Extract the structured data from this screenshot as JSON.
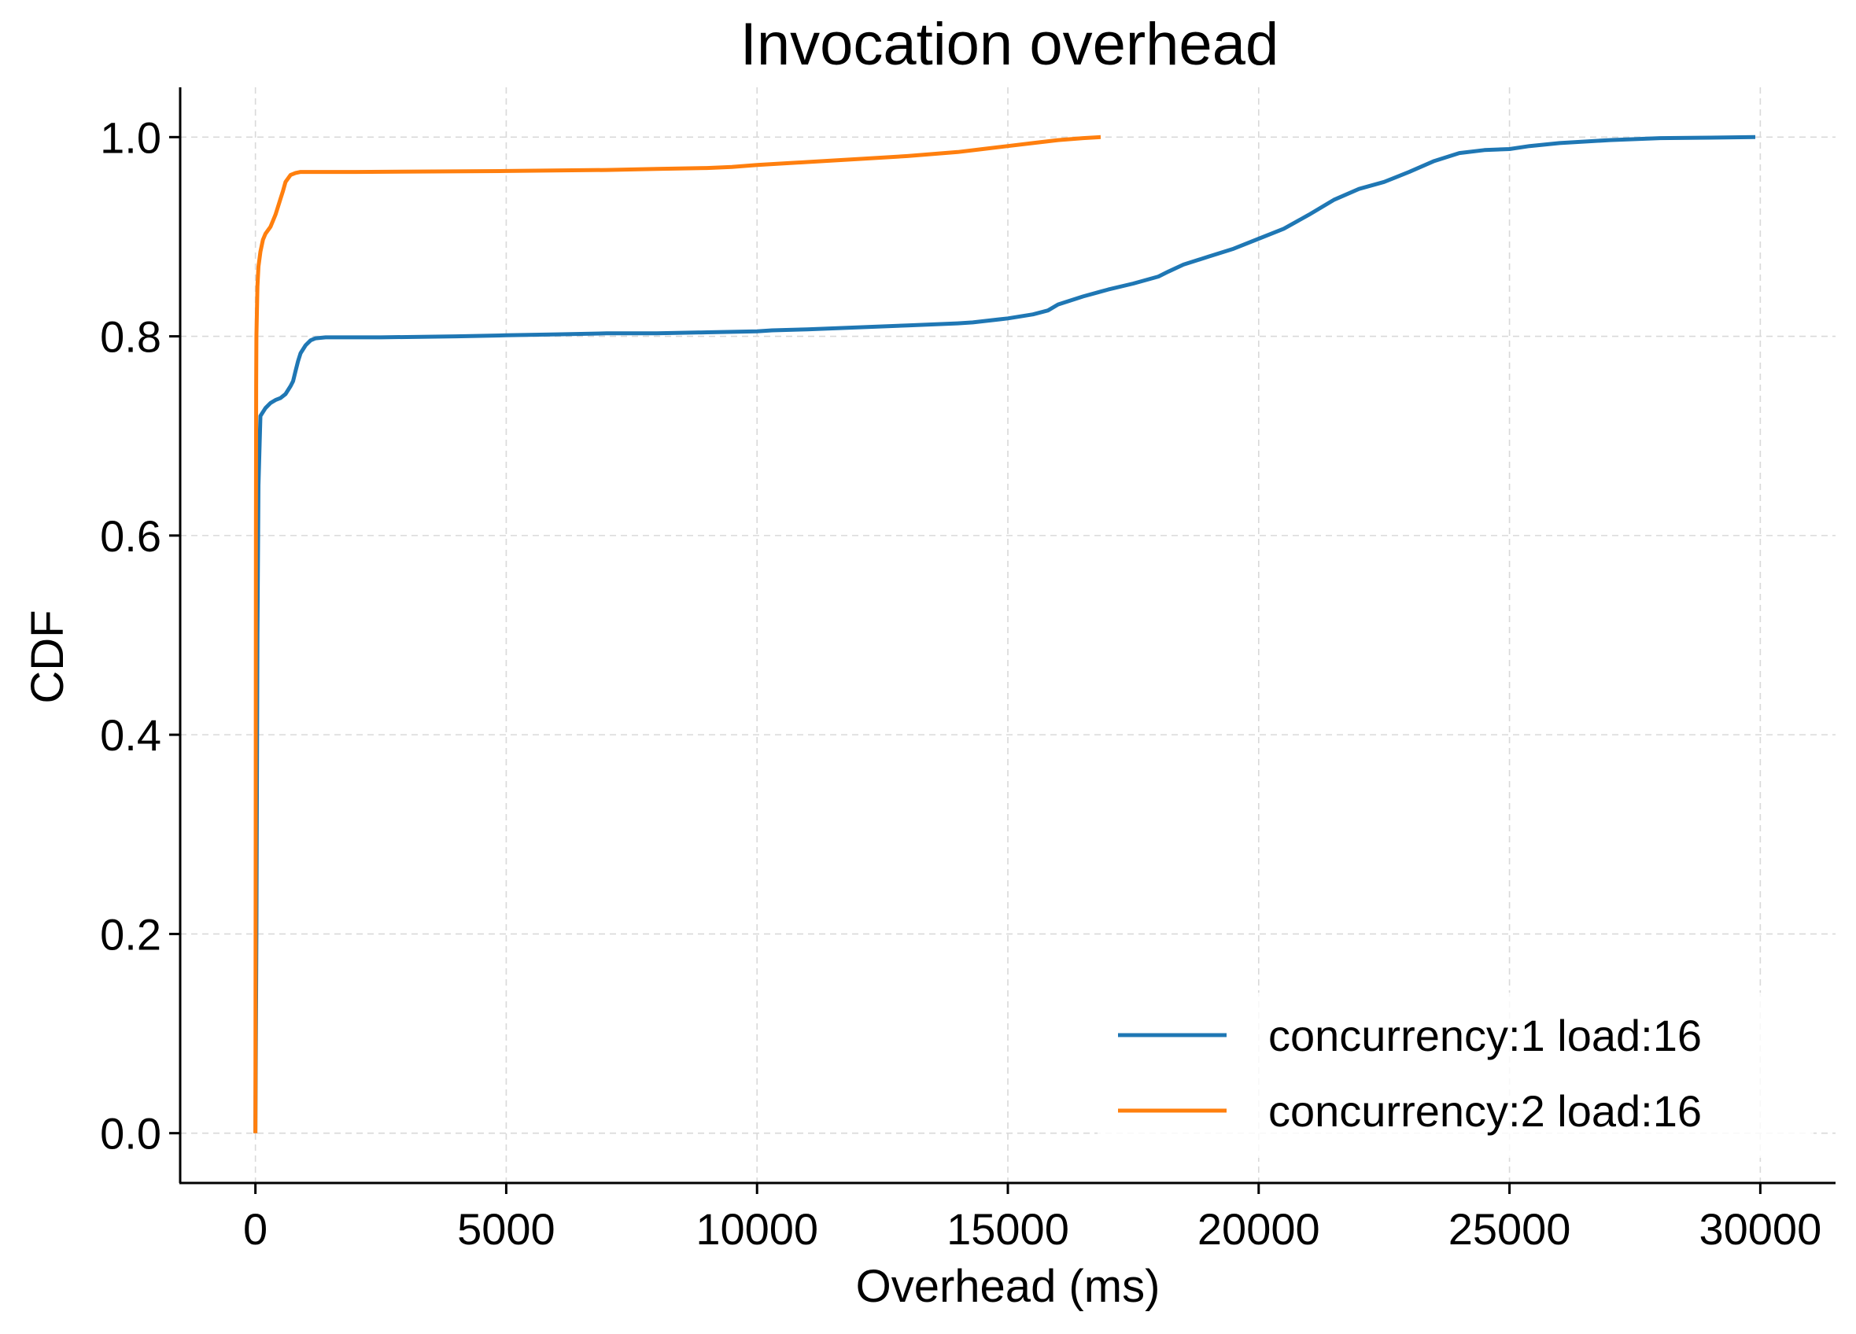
{
  "chart_data": {
    "type": "line",
    "title": "Invocation overhead",
    "xlabel": "Overhead (ms)",
    "ylabel": "CDF",
    "xlim": [
      -1500,
      31500
    ],
    "ylim": [
      -0.05,
      1.05
    ],
    "xticks": [
      0,
      5000,
      10000,
      15000,
      20000,
      25000,
      30000
    ],
    "xtick_labels": [
      "0",
      "5000",
      "10000",
      "15000",
      "20000",
      "25000",
      "30000"
    ],
    "yticks": [
      0.0,
      0.2,
      0.4,
      0.6,
      0.8,
      1.0
    ],
    "ytick_labels": [
      "0.0",
      "0.2",
      "0.4",
      "0.6",
      "0.8",
      "1.0"
    ],
    "grid": true,
    "legend_position": "lower-right",
    "series": [
      {
        "name": "concurrency:1 load:16",
        "color": "#1f77b4",
        "x": [
          0,
          20,
          40,
          60,
          100,
          200,
          300,
          400,
          500,
          600,
          700,
          750,
          800,
          850,
          900,
          1000,
          1100,
          1200,
          1400,
          1700,
          2500,
          4000,
          5000,
          6000,
          7000,
          8000,
          9000,
          10000,
          10300,
          11000,
          11500,
          12000,
          13000,
          14000,
          14300,
          15000,
          15500,
          15800,
          16000,
          16500,
          17000,
          17500,
          18000,
          18200,
          18500,
          19000,
          19500,
          20000,
          20500,
          21000,
          21500,
          22000,
          22500,
          23000,
          23500,
          24000,
          24500,
          25000,
          25400,
          26000,
          27000,
          28000,
          29000,
          29900
        ],
        "y": [
          0.0,
          0.2,
          0.5,
          0.65,
          0.72,
          0.728,
          0.733,
          0.736,
          0.738,
          0.742,
          0.75,
          0.755,
          0.765,
          0.775,
          0.783,
          0.791,
          0.796,
          0.798,
          0.799,
          0.799,
          0.799,
          0.8,
          0.801,
          0.802,
          0.803,
          0.803,
          0.804,
          0.805,
          0.806,
          0.807,
          0.808,
          0.809,
          0.811,
          0.813,
          0.814,
          0.818,
          0.822,
          0.826,
          0.832,
          0.84,
          0.847,
          0.853,
          0.86,
          0.865,
          0.872,
          0.88,
          0.888,
          0.898,
          0.908,
          0.922,
          0.937,
          0.948,
          0.955,
          0.965,
          0.976,
          0.984,
          0.987,
          0.988,
          0.991,
          0.994,
          0.997,
          0.999,
          0.9995,
          1.0
        ]
      },
      {
        "name": "concurrency:2 load:16",
        "color": "#ff7f0e",
        "x": [
          0,
          5,
          10,
          15,
          20,
          40,
          60,
          100,
          150,
          200,
          300,
          400,
          450,
          500,
          550,
          600,
          700,
          800,
          900,
          1000,
          2000,
          5000,
          7000,
          8000,
          9000,
          9500,
          10000,
          11000,
          12000,
          13000,
          14000,
          14500,
          15000,
          15500,
          16000,
          16500,
          16850
        ],
        "y": [
          0.0,
          0.3,
          0.6,
          0.75,
          0.8,
          0.85,
          0.87,
          0.885,
          0.897,
          0.903,
          0.91,
          0.922,
          0.93,
          0.938,
          0.946,
          0.955,
          0.962,
          0.964,
          0.965,
          0.965,
          0.965,
          0.966,
          0.967,
          0.968,
          0.969,
          0.97,
          0.972,
          0.975,
          0.978,
          0.981,
          0.985,
          0.988,
          0.991,
          0.994,
          0.997,
          0.999,
          1.0
        ]
      }
    ]
  }
}
